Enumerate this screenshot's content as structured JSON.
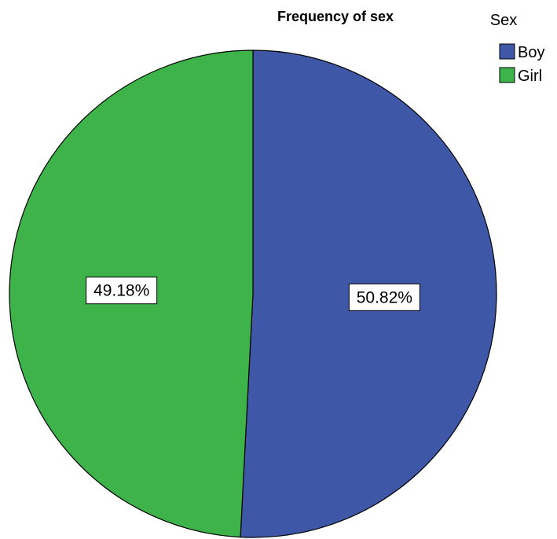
{
  "chart_data": {
    "type": "pie",
    "title": "Frequency of sex",
    "legend": {
      "title": "Sex",
      "placement": "top-right"
    },
    "slices": [
      {
        "label": "Boy",
        "value": 50.82,
        "display": "50.82%",
        "color": "#3E57A6"
      },
      {
        "label": "Girl",
        "value": 49.18,
        "display": "49.18%",
        "color": "#3DB34A"
      }
    ],
    "start_angle": "12 o'clock",
    "direction": "clockwise"
  }
}
